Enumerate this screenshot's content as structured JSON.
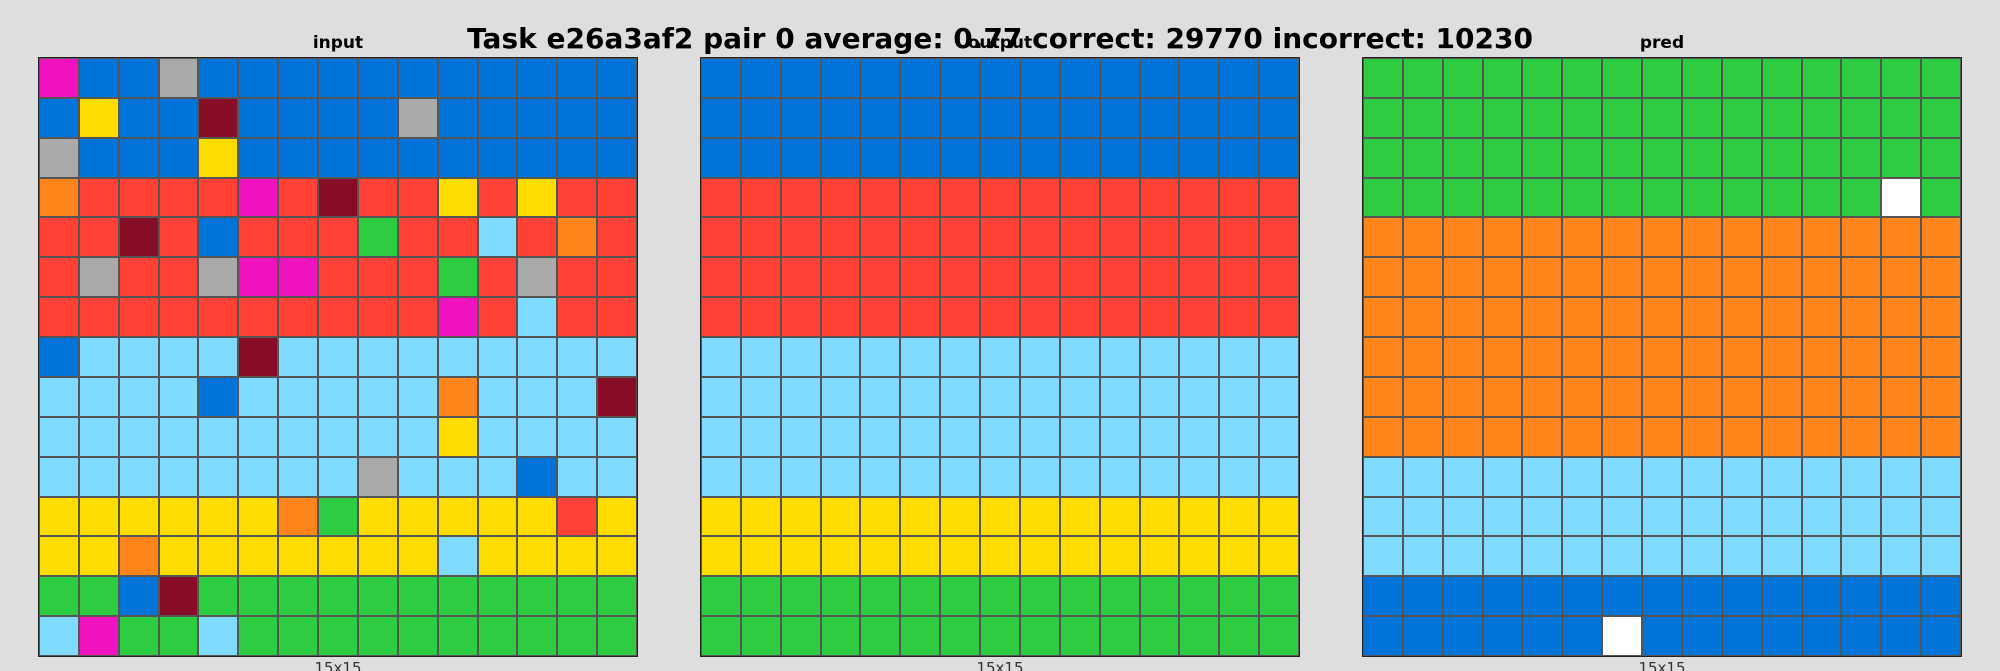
{
  "title": "Task e26a3af2 pair 0 average: 0.77 correct: 29770 incorrect: 10230",
  "palette": {
    "0": "#000000",
    "1": "#0074d9",
    "2": "#ff4136",
    "3": "#2ecc40",
    "4": "#ffdc00",
    "5": "#aaaaaa",
    "6": "#f012be",
    "7": "#ff851b",
    "8": "#7fdbff",
    "9": "#870c25",
    "w": "#ffffff"
  },
  "panels": [
    {
      "id": "input",
      "label": "input",
      "size": "15x15",
      "grid": [
        "611511111111111",
        "141191111511111",
        "511141111111111",
        "722226292242422",
        "229212223228272",
        "252256622232522",
        "222222222262822",
        "188889888888888",
        "888818888878889",
        "888888888848888",
        "888888885888188",
        "444444734444424",
        "447444444484444",
        "331933333333333",
        "863383333333333"
      ]
    },
    {
      "id": "output",
      "label": "output",
      "size": "15x15",
      "grid": [
        "111111111111111",
        "111111111111111",
        "111111111111111",
        "222222222222222",
        "222222222222222",
        "222222222222222",
        "222222222222222",
        "888888888888888",
        "888888888888888",
        "888888888888888",
        "888888888888888",
        "444444444444444",
        "444444444444444",
        "333333333333333",
        "333333333333333"
      ]
    },
    {
      "id": "pred",
      "label": "pred",
      "size": "15x15",
      "grid": [
        "333333333333333",
        "333333333333333",
        "333333333333333",
        "3333333333333w3",
        "777777777777777",
        "777777777777777",
        "777777777777777",
        "777777777777777",
        "777777777777777",
        "777777777777777",
        "888888888888888",
        "888888888888888",
        "888888888888888",
        "111111111111111",
        "111111w11111111"
      ]
    }
  ]
}
